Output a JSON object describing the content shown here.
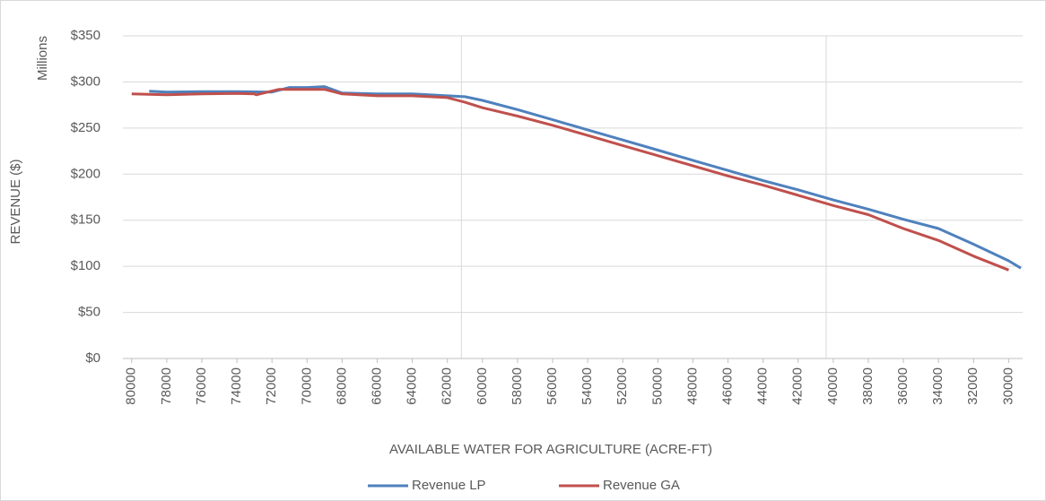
{
  "chart_data": {
    "type": "line",
    "y_axis_label": "REVENUE ($)",
    "y_axis_unit": "Millions",
    "x_axis_label": "AVAILABLE WATER FOR AGRICULTURE (ACRE-FT)",
    "xlim": [
      80500,
      29200
    ],
    "xticks": [
      80000,
      78000,
      76000,
      74000,
      72000,
      70000,
      68000,
      66000,
      64000,
      62000,
      60000,
      58000,
      56000,
      54000,
      52000,
      50000,
      48000,
      46000,
      44000,
      42000,
      40000,
      38000,
      36000,
      34000,
      32000,
      30000
    ],
    "x_gridlines": [
      61200,
      40400
    ],
    "ylim": [
      0,
      350
    ],
    "yticks": [
      {
        "value": 0,
        "label": "$0"
      },
      {
        "value": 50,
        "label": "$50"
      },
      {
        "value": 100,
        "label": "$100"
      },
      {
        "value": 150,
        "label": "$150"
      },
      {
        "value": 200,
        "label": "$200"
      },
      {
        "value": 250,
        "label": "$250"
      },
      {
        "value": 300,
        "label": "$300"
      },
      {
        "value": 350,
        "label": "$350"
      }
    ],
    "grid": true,
    "legend": "bottom",
    "series": [
      {
        "name": "Revenue LP",
        "color": "#4f81bd",
        "x": [
          79000,
          78000,
          76000,
          74000,
          72000,
          71000,
          70000,
          69000,
          68000,
          66000,
          64000,
          62000,
          61000,
          60000,
          58000,
          56000,
          54000,
          52000,
          50000,
          48000,
          46000,
          44000,
          42000,
          40000,
          38000,
          36000,
          34000,
          32000,
          30000,
          29300
        ],
        "values": [
          290,
          289,
          289.5,
          289.5,
          289,
          294,
          294,
          295,
          288,
          287,
          287,
          285,
          284,
          280,
          270,
          259,
          248,
          237,
          226,
          215,
          204,
          193,
          183,
          172,
          162,
          151,
          141,
          124,
          106,
          98
        ]
      },
      {
        "name": "Revenue GA",
        "color": "#c0504d",
        "x": [
          80000,
          78000,
          76000,
          74000,
          73000,
          72900,
          71600,
          70000,
          69000,
          68000,
          66000,
          64000,
          62000,
          61000,
          60000,
          58000,
          56000,
          54000,
          52000,
          50000,
          48000,
          46000,
          44000,
          42000,
          40000,
          38000,
          36000,
          34000,
          32000,
          30000
        ],
        "values": [
          287,
          286,
          287,
          287.5,
          287,
          286,
          292,
          292,
          292,
          287,
          285,
          285,
          283,
          278,
          272,
          263,
          253,
          242,
          231,
          220,
          209,
          198,
          188,
          177,
          166,
          156,
          141,
          128,
          111,
          96
        ]
      }
    ]
  }
}
